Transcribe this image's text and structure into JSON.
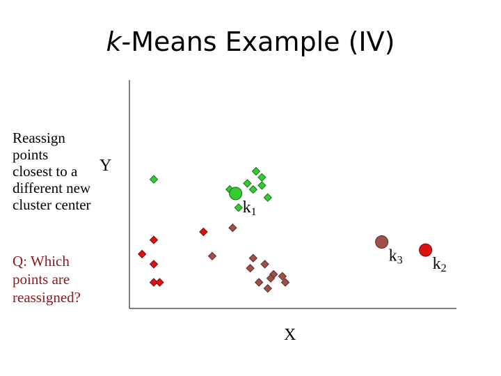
{
  "slide": {
    "title_italic": "k",
    "title_rest": "-Means Example (IV)",
    "instructions": [
      "Reassign",
      "points",
      "closest to a",
      "different new",
      "cluster center"
    ],
    "question": [
      "Q: Which",
      "points are",
      "reassigned?"
    ]
  },
  "chart_data": {
    "type": "scatter",
    "xlabel": "X",
    "ylabel": "Y",
    "colors": {
      "cluster1": "#33cc33",
      "cluster2": "#dd1111",
      "cluster3": "#a0504a"
    },
    "centers": [
      {
        "name": "k",
        "sub": "1",
        "cluster": "cluster1",
        "x": 0.33,
        "y": 0.49
      },
      {
        "name": "k",
        "sub": "2",
        "cluster": "cluster2",
        "x": 0.98,
        "y": 0.21
      },
      {
        "name": "k",
        "sub": "3",
        "cluster": "cluster3",
        "x": 0.83,
        "y": 0.25
      }
    ],
    "points": [
      {
        "cluster": "cluster1",
        "x": 0.05,
        "y": 0.56
      },
      {
        "cluster": "cluster1",
        "x": 0.31,
        "y": 0.51
      },
      {
        "cluster": "cluster1",
        "x": 0.39,
        "y": 0.51
      },
      {
        "cluster": "cluster1",
        "x": 0.4,
        "y": 0.6
      },
      {
        "cluster": "cluster1",
        "x": 0.37,
        "y": 0.54
      },
      {
        "cluster": "cluster1",
        "x": 0.42,
        "y": 0.53
      },
      {
        "cluster": "cluster1",
        "x": 0.42,
        "y": 0.57
      },
      {
        "cluster": "cluster1",
        "x": 0.44,
        "y": 0.47
      },
      {
        "cluster": "cluster1",
        "x": 0.34,
        "y": 0.42
      },
      {
        "cluster": "cluster2",
        "x": 0.05,
        "y": 0.26
      },
      {
        "cluster": "cluster2",
        "x": 0.01,
        "y": 0.19
      },
      {
        "cluster": "cluster2",
        "x": 0.05,
        "y": 0.14
      },
      {
        "cluster": "cluster2",
        "x": 0.05,
        "y": 0.05
      },
      {
        "cluster": "cluster2",
        "x": 0.07,
        "y": 0.05
      },
      {
        "cluster": "cluster2",
        "x": 0.22,
        "y": 0.3
      },
      {
        "cluster": "cluster3",
        "x": 0.32,
        "y": 0.32
      },
      {
        "cluster": "cluster3",
        "x": 0.25,
        "y": 0.18
      },
      {
        "cluster": "cluster3",
        "x": 0.39,
        "y": 0.17
      },
      {
        "cluster": "cluster3",
        "x": 0.38,
        "y": 0.12
      },
      {
        "cluster": "cluster3",
        "x": 0.43,
        "y": 0.14
      },
      {
        "cluster": "cluster3",
        "x": 0.46,
        "y": 0.09
      },
      {
        "cluster": "cluster3",
        "x": 0.41,
        "y": 0.05
      },
      {
        "cluster": "cluster3",
        "x": 0.5,
        "y": 0.05
      },
      {
        "cluster": "cluster3",
        "x": 0.49,
        "y": 0.08
      },
      {
        "cluster": "cluster3",
        "x": 0.45,
        "y": 0.07
      },
      {
        "cluster": "cluster3",
        "x": 0.44,
        "y": 0.02
      }
    ]
  }
}
